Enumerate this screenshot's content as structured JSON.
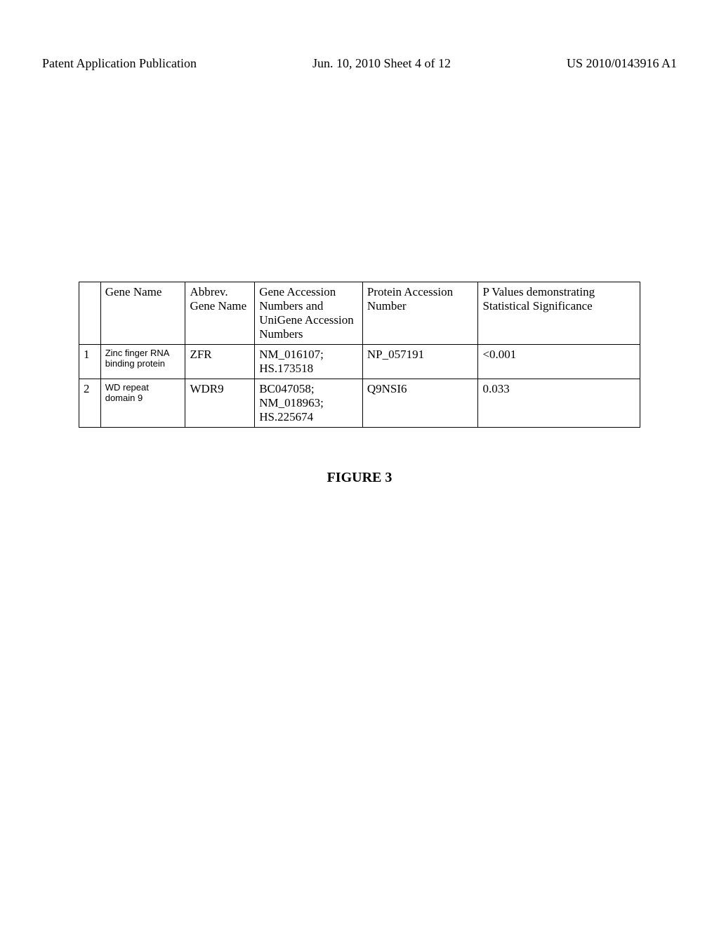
{
  "header": {
    "left": "Patent Application Publication",
    "mid": "Jun. 10, 2010  Sheet 4 of 12",
    "right": "US 2010/0143916 A1"
  },
  "table": {
    "columns": [
      "",
      "Gene Name",
      "Abbrev. Gene Name",
      "Gene Accession Numbers and UniGene Accession Numbers",
      "Protein Accession Number",
      "P Values demonstrating Statistical Significance"
    ],
    "rows": [
      {
        "idx": "1",
        "gene_name": "Zinc finger RNA binding protein",
        "abbrev": "ZFR",
        "accession": "NM_016107; HS.173518",
        "protein": "NP_057191",
        "pvalue": "<0.001"
      },
      {
        "idx": "2",
        "gene_name": "WD repeat domain 9",
        "abbrev": "WDR9",
        "accession": "BC047058; NM_018963; HS.225674",
        "protein": "Q9NSI6",
        "pvalue": "0.033"
      }
    ]
  },
  "figure_label": "FIGURE 3"
}
